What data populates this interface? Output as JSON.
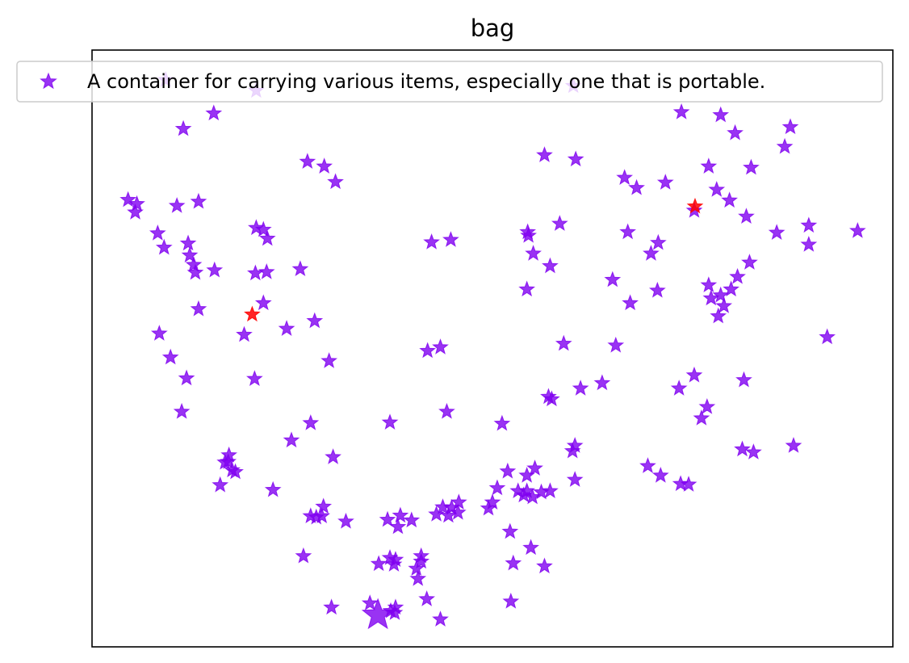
{
  "chart_data": {
    "type": "scatter",
    "title": "bag",
    "xlabel": "",
    "ylabel": "",
    "xlim": [
      0,
      100
    ],
    "ylim": [
      0,
      100
    ],
    "xticks": [],
    "yticks": [],
    "grid": false,
    "legend_position": "top",
    "marker": "star",
    "series": [
      {
        "name": "A container for carrying various items, especially one that is portable.",
        "color": "#8000f0",
        "points": [
          [
            9.2,
            95.0
          ],
          [
            20.5,
            93.2
          ],
          [
            15.2,
            89.4
          ],
          [
            11.4,
            86.8
          ],
          [
            60.1,
            94.0
          ],
          [
            73.6,
            89.6
          ],
          [
            78.5,
            89.1
          ],
          [
            80.3,
            86.1
          ],
          [
            87.2,
            87.1
          ],
          [
            86.5,
            83.8
          ],
          [
            56.5,
            82.4
          ],
          [
            60.4,
            81.7
          ],
          [
            77.0,
            80.5
          ],
          [
            82.3,
            80.3
          ],
          [
            66.5,
            78.6
          ],
          [
            68.0,
            76.9
          ],
          [
            71.6,
            77.8
          ],
          [
            26.9,
            81.3
          ],
          [
            29.0,
            80.5
          ],
          [
            30.4,
            77.9
          ],
          [
            4.5,
            74.9
          ],
          [
            5.6,
            74.2
          ],
          [
            5.4,
            72.8
          ],
          [
            10.6,
            73.9
          ],
          [
            13.3,
            74.6
          ],
          [
            78.0,
            76.6
          ],
          [
            79.6,
            74.8
          ],
          [
            81.7,
            72.1
          ],
          [
            75.2,
            73.1
          ],
          [
            58.4,
            70.9
          ],
          [
            54.4,
            69.5
          ],
          [
            66.9,
            69.5
          ],
          [
            70.7,
            67.7
          ],
          [
            69.8,
            65.9
          ],
          [
            8.2,
            69.3
          ],
          [
            9.0,
            66.9
          ],
          [
            12.0,
            67.6
          ],
          [
            12.2,
            65.6
          ],
          [
            12.7,
            64.0
          ],
          [
            12.9,
            62.7
          ],
          [
            15.3,
            63.1
          ],
          [
            20.5,
            70.2
          ],
          [
            21.4,
            69.9
          ],
          [
            21.9,
            68.4
          ],
          [
            20.4,
            62.6
          ],
          [
            21.8,
            62.8
          ],
          [
            26.0,
            63.3
          ],
          [
            42.4,
            67.8
          ],
          [
            44.8,
            68.2
          ],
          [
            54.5,
            68.9
          ],
          [
            89.5,
            70.6
          ],
          [
            89.5,
            67.4
          ],
          [
            95.6,
            69.7
          ],
          [
            85.5,
            69.4
          ],
          [
            55.1,
            65.9
          ],
          [
            57.2,
            63.8
          ],
          [
            54.3,
            59.9
          ],
          [
            65.0,
            61.5
          ],
          [
            70.6,
            59.7
          ],
          [
            67.2,
            57.6
          ],
          [
            82.1,
            64.4
          ],
          [
            80.6,
            62.0
          ],
          [
            79.8,
            59.9
          ],
          [
            77.0,
            60.6
          ],
          [
            77.3,
            58.4
          ],
          [
            78.5,
            58.9
          ],
          [
            78.9,
            57.1
          ],
          [
            78.2,
            55.4
          ],
          [
            13.3,
            56.6
          ],
          [
            21.4,
            57.6
          ],
          [
            27.8,
            54.6
          ],
          [
            24.3,
            53.3
          ],
          [
            19.0,
            52.3
          ],
          [
            8.4,
            52.5
          ],
          [
            9.8,
            48.5
          ],
          [
            11.8,
            45.0
          ],
          [
            20.3,
            44.9
          ],
          [
            11.2,
            39.4
          ],
          [
            41.9,
            49.6
          ],
          [
            43.5,
            50.2
          ],
          [
            58.9,
            50.8
          ],
          [
            65.4,
            50.5
          ],
          [
            29.6,
            47.9
          ],
          [
            75.2,
            45.5
          ],
          [
            73.3,
            43.3
          ],
          [
            63.7,
            44.2
          ],
          [
            61.0,
            43.3
          ],
          [
            57.0,
            41.9
          ],
          [
            91.8,
            51.9
          ],
          [
            81.4,
            44.7
          ],
          [
            76.8,
            40.2
          ],
          [
            76.1,
            38.3
          ],
          [
            57.4,
            41.5
          ],
          [
            27.3,
            37.5
          ],
          [
            37.2,
            37.6
          ],
          [
            44.3,
            39.4
          ],
          [
            51.2,
            37.4
          ],
          [
            24.9,
            34.6
          ],
          [
            60.3,
            33.7
          ],
          [
            60.0,
            32.8
          ],
          [
            81.2,
            33.1
          ],
          [
            82.6,
            32.6
          ],
          [
            87.6,
            33.7
          ],
          [
            17.1,
            32.1
          ],
          [
            17.0,
            31.0
          ],
          [
            16.6,
            30.9
          ],
          [
            17.5,
            29.6
          ],
          [
            17.9,
            29.3
          ],
          [
            16.0,
            27.1
          ],
          [
            30.1,
            31.8
          ],
          [
            22.6,
            26.3
          ],
          [
            51.9,
            29.4
          ],
          [
            55.3,
            29.9
          ],
          [
            54.3,
            28.7
          ],
          [
            69.4,
            30.3
          ],
          [
            71.0,
            28.7
          ],
          [
            73.5,
            27.3
          ],
          [
            74.5,
            27.2
          ],
          [
            60.3,
            28.0
          ],
          [
            50.6,
            26.6
          ],
          [
            53.2,
            26.1
          ],
          [
            54.3,
            26.1
          ],
          [
            53.9,
            25.4
          ],
          [
            55.0,
            25.1
          ],
          [
            57.2,
            26.1
          ],
          [
            56.1,
            25.9
          ],
          [
            50.0,
            24.2
          ],
          [
            49.5,
            23.2
          ],
          [
            45.8,
            24.2
          ],
          [
            44.9,
            23.3
          ],
          [
            45.7,
            22.5
          ],
          [
            44.5,
            22.0
          ],
          [
            43.8,
            23.4
          ],
          [
            43.0,
            22.2
          ],
          [
            28.9,
            23.5
          ],
          [
            27.3,
            21.9
          ],
          [
            28.0,
            21.7
          ],
          [
            28.7,
            21.9
          ],
          [
            31.7,
            21.0
          ],
          [
            26.4,
            15.2
          ],
          [
            36.9,
            21.3
          ],
          [
            38.5,
            22.0
          ],
          [
            39.9,
            21.2
          ],
          [
            38.2,
            20.1
          ],
          [
            52.2,
            19.3
          ],
          [
            54.8,
            16.6
          ],
          [
            41.1,
            15.2
          ],
          [
            37.9,
            14.6
          ],
          [
            37.7,
            13.8
          ],
          [
            41.1,
            14.3
          ],
          [
            40.5,
            13.1
          ],
          [
            40.7,
            11.4
          ],
          [
            35.8,
            13.9
          ],
          [
            37.2,
            14.9
          ],
          [
            52.6,
            14.0
          ],
          [
            56.5,
            13.5
          ],
          [
            41.8,
            8.0
          ],
          [
            29.9,
            6.6
          ],
          [
            34.7,
            7.3
          ],
          [
            37.9,
            6.6
          ],
          [
            37.3,
            6.0
          ],
          [
            37.8,
            5.7
          ],
          [
            52.3,
            7.6
          ],
          [
            43.5,
            4.6
          ]
        ]
      },
      {
        "name": "",
        "color": "#ff0000",
        "points": [
          [
            75.3,
            73.8
          ],
          [
            20.0,
            55.7
          ]
        ]
      }
    ],
    "highlight_point": {
      "x": 35.7,
      "y": 5.3,
      "color": "#8000f0",
      "size": "large"
    }
  }
}
